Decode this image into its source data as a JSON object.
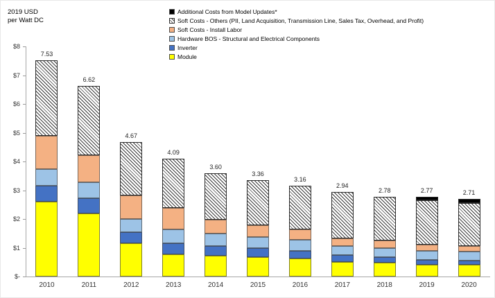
{
  "chart_data": {
    "type": "bar",
    "stacked": true,
    "title": "",
    "unit_label": [
      "2019 USD",
      "per Watt DC"
    ],
    "categories": [
      "2010",
      "2011",
      "2012",
      "2013",
      "2014",
      "2015",
      "2016",
      "2017",
      "2018",
      "2019",
      "2020"
    ],
    "totals": [
      7.53,
      6.62,
      4.67,
      4.09,
      3.6,
      3.36,
      3.16,
      2.94,
      2.78,
      2.77,
      2.71
    ],
    "series": [
      {
        "name": "Module",
        "color": "#FFFF00",
        "pattern": "solid",
        "values": [
          2.6,
          2.2,
          1.15,
          0.78,
          0.72,
          0.68,
          0.62,
          0.5,
          0.47,
          0.41,
          0.41
        ]
      },
      {
        "name": "Inverter",
        "color": "#4472C4",
        "pattern": "solid",
        "values": [
          0.55,
          0.52,
          0.4,
          0.38,
          0.35,
          0.3,
          0.28,
          0.24,
          0.2,
          0.16,
          0.14
        ]
      },
      {
        "name": "Hardware BOS - Structural and Electrical Components",
        "color": "#9DC3E6",
        "pattern": "solid",
        "values": [
          0.58,
          0.55,
          0.45,
          0.48,
          0.43,
          0.4,
          0.38,
          0.33,
          0.33,
          0.33,
          0.31
        ]
      },
      {
        "name": "Soft Costs - Install Labor",
        "color": "#F4B183",
        "pattern": "solid",
        "values": [
          1.15,
          0.95,
          0.82,
          0.75,
          0.48,
          0.4,
          0.35,
          0.25,
          0.25,
          0.21,
          0.2
        ]
      },
      {
        "name": "Soft Costs - Others (PII, Land Acquisition, Transmission Line, Sales Tax, Overhead, and Profit)",
        "color": "#FFFFFF",
        "pattern": "hatch",
        "values": [
          2.65,
          2.4,
          1.85,
          1.7,
          1.62,
          1.58,
          1.53,
          1.62,
          1.53,
          1.54,
          1.49
        ]
      },
      {
        "name": "Additional Costs from Model Updates*",
        "color": "#000000",
        "pattern": "solid",
        "values": [
          0,
          0,
          0,
          0,
          0,
          0,
          0,
          0,
          0,
          0.12,
          0.16
        ]
      }
    ],
    "ylim": [
      0,
      8
    ],
    "yticks": [
      "$-",
      "$1",
      "$2",
      "$3",
      "$4",
      "$5",
      "$6",
      "$7",
      "$8"
    ],
    "grid": false,
    "legend_position": "top"
  }
}
